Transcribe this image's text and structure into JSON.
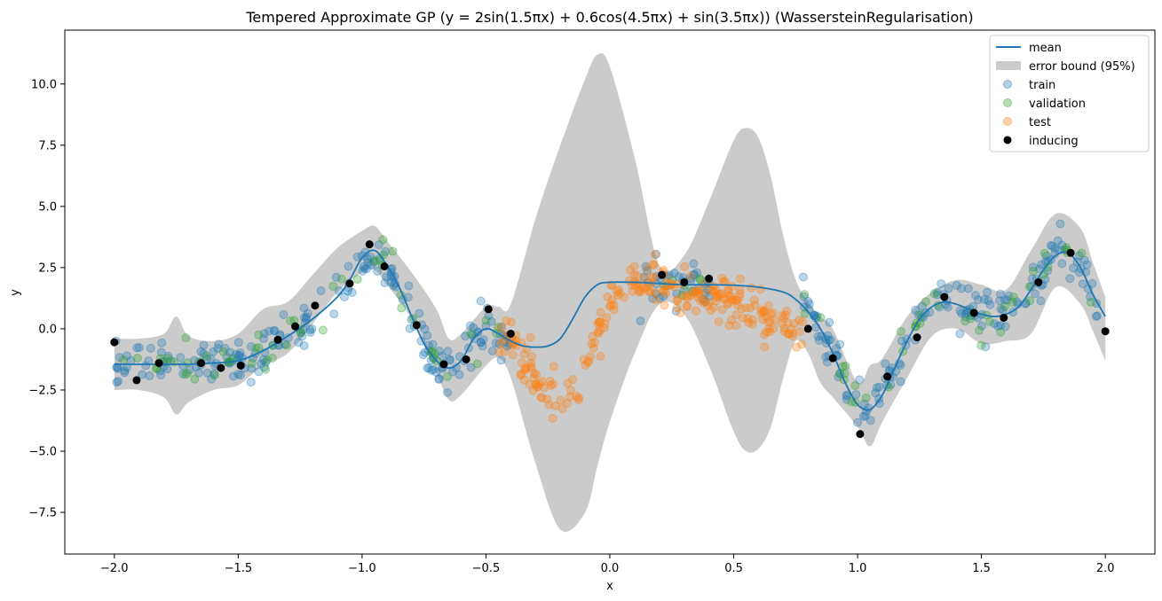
{
  "chart_data": {
    "type": "scatter",
    "title": "Tempered Approximate GP (y = 2sin(1.5πx) + 0.6cos(4.5πx) + sin(3.5πx)) (WassersteinRegularisation)",
    "xlabel": "x",
    "ylabel": "y",
    "xlim": [
      -2.2,
      2.2
    ],
    "ylim": [
      -9.2,
      12.2
    ],
    "xticks": [
      "-2.0",
      "-1.5",
      "-1.0",
      "-0.5",
      "0.0",
      "0.5",
      "1.0",
      "1.5",
      "2.0"
    ],
    "yticks": [
      "-7.5",
      "-5.0",
      "-2.5",
      "0.0",
      "2.5",
      "5.0",
      "7.5",
      "10.0"
    ],
    "grid": false,
    "legend_position": "top-right",
    "colors": {
      "mean": "#1f77b4",
      "error_band": "#cbcbcb",
      "train": "#1f77b4",
      "validation": "#2ca02c",
      "test": "#ff7f0e",
      "inducing": "#000000"
    },
    "legend": [
      "mean",
      "error bound (95%)",
      "train",
      "validation",
      "test",
      "inducing"
    ],
    "mean": {
      "x": [
        -2.0,
        -1.9,
        -1.8,
        -1.7,
        -1.6,
        -1.5,
        -1.4,
        -1.3,
        -1.2,
        -1.1,
        -1.05,
        -1.0,
        -0.95,
        -0.9,
        -0.85,
        -0.8,
        -0.75,
        -0.7,
        -0.65,
        -0.6,
        -0.55,
        -0.5,
        -0.45,
        -0.4,
        -0.35,
        -0.3,
        -0.25,
        -0.2,
        -0.15,
        -0.1,
        -0.05,
        0.0,
        0.1,
        0.2,
        0.3,
        0.4,
        0.5,
        0.6,
        0.7,
        0.75,
        0.8,
        0.85,
        0.9,
        0.95,
        1.0,
        1.05,
        1.1,
        1.15,
        1.2,
        1.25,
        1.3,
        1.35,
        1.4,
        1.45,
        1.5,
        1.55,
        1.6,
        1.65,
        1.7,
        1.75,
        1.8,
        1.85,
        1.9,
        1.95,
        2.0
      ],
      "y": [
        -1.45,
        -1.45,
        -1.45,
        -1.45,
        -1.4,
        -1.3,
        -0.9,
        -0.3,
        0.4,
        1.3,
        2.0,
        2.9,
        3.2,
        2.6,
        1.7,
        0.5,
        -0.6,
        -1.3,
        -1.6,
        -1.3,
        -0.4,
        0.0,
        -0.2,
        -0.5,
        -0.7,
        -0.75,
        -0.7,
        -0.4,
        0.4,
        1.3,
        1.8,
        1.9,
        1.9,
        1.85,
        1.8,
        1.8,
        1.78,
        1.7,
        1.5,
        1.2,
        0.7,
        0.0,
        -1.0,
        -2.2,
        -3.1,
        -3.3,
        -2.7,
        -1.6,
        -0.5,
        0.4,
        0.9,
        1.1,
        1.0,
        0.8,
        0.6,
        0.5,
        0.6,
        0.9,
        1.6,
        2.4,
        3.0,
        3.1,
        2.5,
        1.4,
        0.5
      ]
    },
    "error_band": {
      "x": [
        -2.0,
        -1.9,
        -1.8,
        -1.75,
        -1.7,
        -1.6,
        -1.5,
        -1.4,
        -1.3,
        -1.2,
        -1.1,
        -1.0,
        -0.95,
        -0.9,
        -0.8,
        -0.7,
        -0.65,
        -0.6,
        -0.5,
        -0.45,
        -0.4,
        -0.3,
        -0.2,
        -0.1,
        -0.05,
        0.0,
        0.1,
        0.2,
        0.3,
        0.4,
        0.5,
        0.55,
        0.6,
        0.65,
        0.7,
        0.75,
        0.8,
        0.85,
        0.9,
        1.0,
        1.05,
        1.1,
        1.2,
        1.3,
        1.4,
        1.5,
        1.6,
        1.7,
        1.8,
        1.9,
        1.95,
        2.0
      ],
      "upper": [
        -0.4,
        -0.4,
        -0.2,
        0.5,
        -0.3,
        -0.5,
        -0.2,
        0.8,
        1.1,
        2.2,
        3.3,
        4.0,
        4.2,
        3.6,
        2.3,
        0.8,
        -0.4,
        -0.2,
        0.9,
        0.9,
        1.0,
        4.5,
        7.5,
        10.2,
        11.2,
        10.7,
        7.0,
        2.6,
        3.0,
        5.2,
        7.7,
        8.2,
        7.8,
        6.2,
        3.8,
        2.0,
        1.1,
        0.5,
        0.0,
        -2.2,
        -1.5,
        -1.2,
        0.5,
        1.5,
        2.0,
        1.8,
        1.6,
        3.2,
        4.7,
        4.1,
        2.7,
        1.3
      ],
      "lower": [
        -2.5,
        -2.5,
        -2.8,
        -3.5,
        -3.0,
        -2.5,
        -2.3,
        -1.5,
        -1.0,
        0.2,
        1.5,
        2.3,
        2.4,
        1.8,
        0.4,
        -1.8,
        -2.9,
        -2.7,
        -1.5,
        -1.2,
        -2.0,
        -5.5,
        -8.2,
        -7.5,
        -5.6,
        -3.8,
        -1.0,
        1.0,
        0.6,
        -1.5,
        -4.2,
        -5.0,
        -4.9,
        -4.0,
        -2.0,
        -0.5,
        -1.0,
        -2.2,
        -2.8,
        -4.0,
        -4.8,
        -3.8,
        -2.0,
        -0.3,
        0.0,
        -0.6,
        -0.5,
        -0.2,
        1.7,
        1.0,
        -0.1,
        -1.3
      ]
    },
    "inducing": {
      "x": [
        -2.0,
        -1.91,
        -1.82,
        -1.65,
        -1.57,
        -1.49,
        -1.34,
        -1.27,
        -1.19,
        -1.05,
        -0.97,
        -0.91,
        -0.78,
        -0.67,
        -0.58,
        -0.49,
        -0.4,
        0.21,
        0.3,
        0.4,
        0.8,
        0.9,
        1.01,
        1.12,
        1.24,
        1.35,
        1.47,
        1.59,
        1.73,
        1.86,
        2.0
      ],
      "y": [
        -0.55,
        -2.1,
        -1.4,
        -1.4,
        -1.6,
        -1.5,
        -0.45,
        0.1,
        0.95,
        1.85,
        3.45,
        2.55,
        0.15,
        -1.45,
        -1.25,
        0.8,
        -0.2,
        2.2,
        1.9,
        2.05,
        0.0,
        -1.2,
        -4.3,
        -1.95,
        -0.35,
        1.3,
        0.65,
        0.45,
        1.9,
        3.1,
        -0.1
      ]
    },
    "train_segments": [
      [
        -2.0,
        -0.4
      ],
      [
        0.12,
        0.42
      ],
      [
        0.78,
        2.0
      ]
    ],
    "validation_segments": [
      [
        -2.0,
        -0.45
      ],
      [
        0.2,
        0.4
      ],
      [
        0.78,
        2.0
      ]
    ],
    "test_segment": [
      -0.45,
      0.78
    ],
    "train_count": 420,
    "validation_count": 110,
    "test_count": 260,
    "noise_sd": 0.45
  }
}
